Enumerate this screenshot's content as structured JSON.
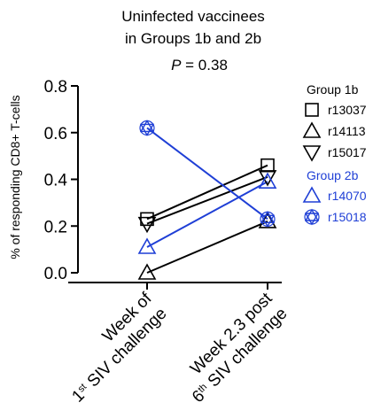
{
  "chart_data": {
    "type": "scatter",
    "title_line1": "Uninfected vaccinees",
    "title_line2": "in Groups 1b and 2b",
    "p_label": "P",
    "p_value": " = 0.38",
    "ylabel": "% of responding CD8+ T-cells",
    "ylim": [
      0,
      0.8
    ],
    "yticks": [
      "0.0",
      "0.2",
      "0.4",
      "0.6",
      "0.8"
    ],
    "categories": [
      {
        "line1": "Week of",
        "line2_sup": "st",
        "line2_pre": "1",
        "line2_post": " SIV challenge"
      },
      {
        "line1": "Week 2.3 post",
        "line2_sup": "th",
        "line2_pre": "6",
        "line2_post": " SIV challenge"
      }
    ],
    "groups": [
      {
        "name": "Group 1b",
        "color": "#000000",
        "series": [
          {
            "name": "r13037",
            "marker": "square",
            "values": [
              0.23,
              0.46
            ]
          },
          {
            "name": "r14113",
            "marker": "triangle-up",
            "values": [
              0.0,
              0.22
            ]
          },
          {
            "name": "r15017",
            "marker": "triangle-down",
            "values": [
              0.21,
              0.41
            ]
          }
        ]
      },
      {
        "name": "Group 2b",
        "color": "#1f3fd6",
        "series": [
          {
            "name": "r14070",
            "marker": "triangle-up",
            "values": [
              0.11,
              0.39
            ]
          },
          {
            "name": "r15018",
            "marker": "hexagram",
            "values": [
              0.62,
              0.23
            ]
          }
        ]
      }
    ]
  }
}
